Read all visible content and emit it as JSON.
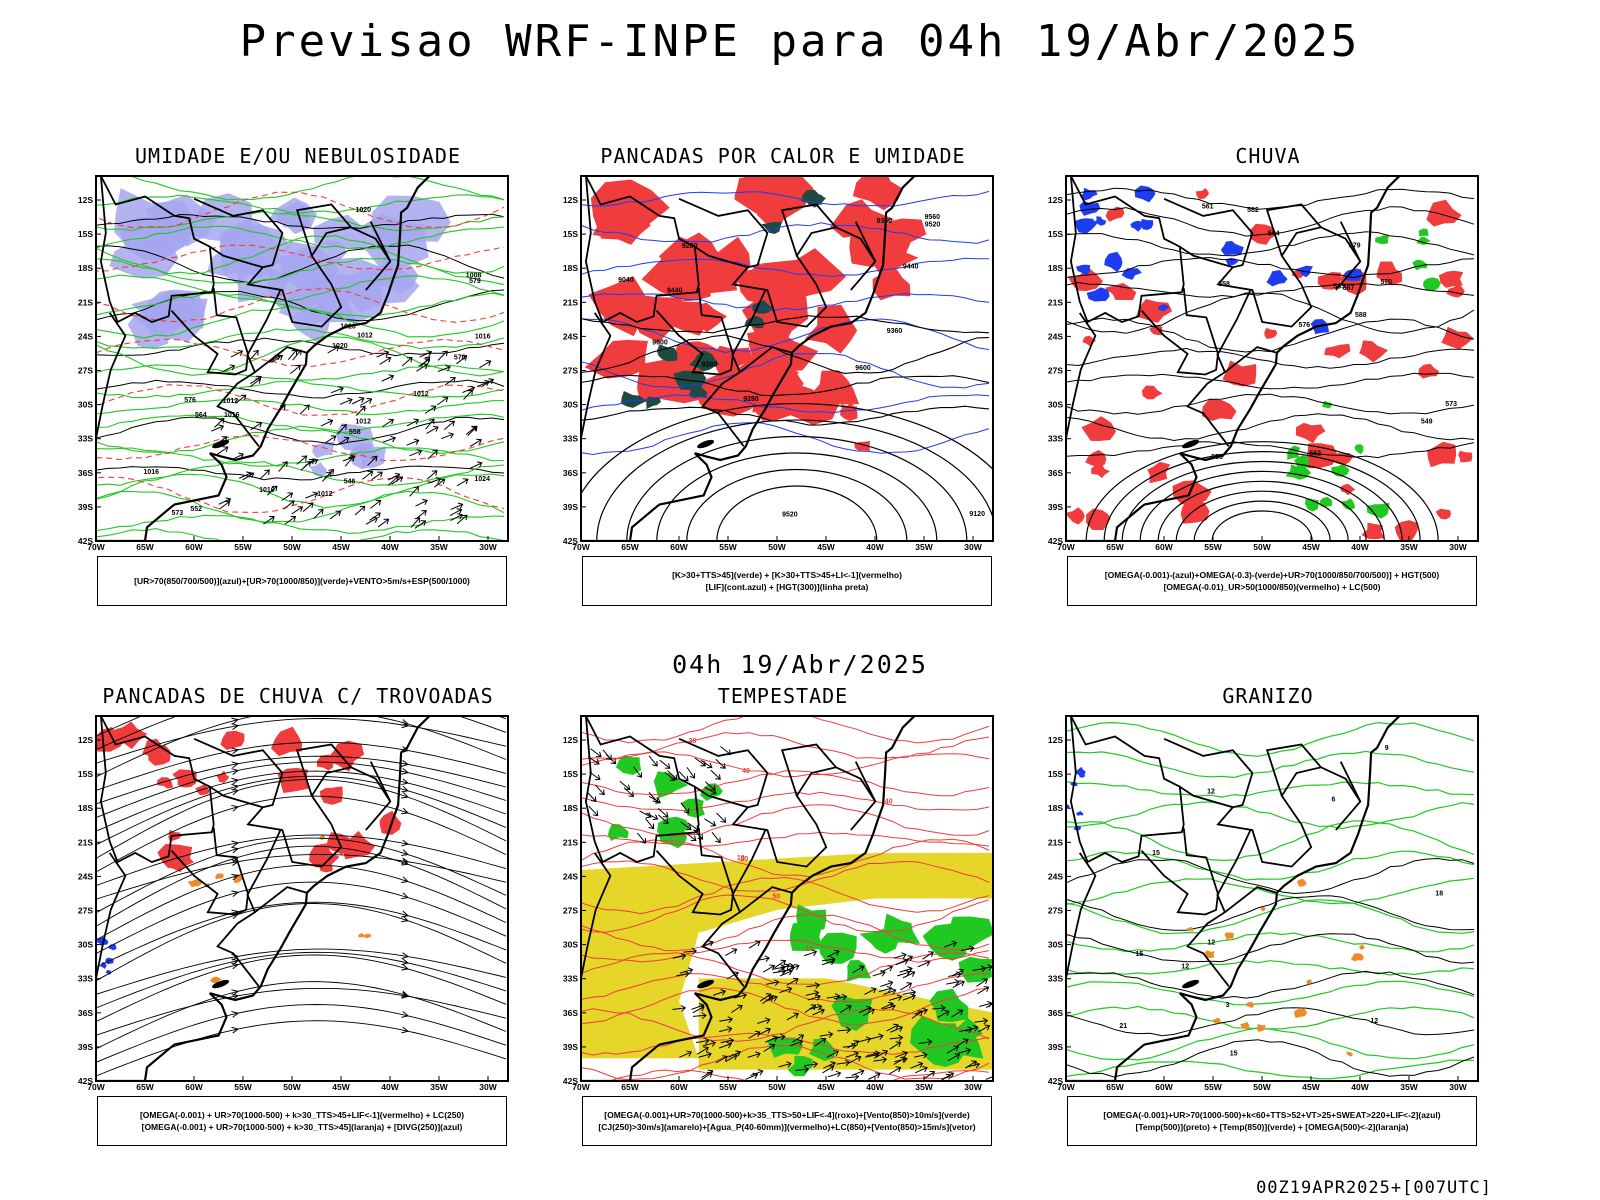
{
  "header": {
    "title": "Previsao WRF-INPE  para 04h 19/Abr/2025",
    "mid_title": "04h 19/Abr/2025",
    "run_stamp": "00Z19APR2025+[007UTC]"
  },
  "axes": {
    "lat_labels": [
      "12S",
      "15S",
      "18S",
      "21S",
      "24S",
      "27S",
      "30S",
      "33S",
      "36S",
      "39S",
      "42S"
    ],
    "lon_labels": [
      "70W",
      "65W",
      "60W",
      "55W",
      "50W",
      "45W",
      "40W",
      "35W",
      "30W"
    ]
  },
  "colors": {
    "blue_shade": "#a6a6f0",
    "red": "#f03c3c",
    "green": "#22c822",
    "dark_green": "#1e4a40",
    "yellow": "#e6d62a",
    "orange": "#f08a28",
    "blue": "#1e3cf0",
    "black": "#000000"
  },
  "panels": [
    {
      "id": "umidade",
      "title": "UMIDADE E/OU NEBULOSIDADE",
      "legend": [
        "[UR>70(850/700/500)](azul)+[UR>70(1000/850)](verde)+VENTO>5m/s+ESP(500/1000)"
      ],
      "contour_labels": [
        "1012",
        "1016",
        "1012",
        "1012",
        "1016",
        "1012",
        "1020",
        "1016",
        "1020",
        "1024",
        "1016",
        "1012",
        "1008",
        "1020",
        "576",
        "570",
        "564",
        "558",
        "552",
        "546",
        "579",
        "573"
      ]
    },
    {
      "id": "pancadas",
      "title": "PANCADAS POR CALOR E UMIDADE",
      "legend": [
        "[K>30+TTS>45](verde) + [K>30+TTS>45+LI<-1](vermelho)",
        "[LIF](cont.azul) + [HGT(300)](linha preta)"
      ],
      "contour_labels": [
        "9600",
        "9560",
        "9520",
        "9440",
        "9360",
        "9280",
        "9200",
        "9120",
        "9040",
        "9600",
        "9520",
        "9440",
        "9280",
        "9360"
      ]
    },
    {
      "id": "chuva",
      "title": "CHUVA",
      "legend": [
        "[OMEGA(-0.001)-(azul)+OMEGA(-0.3)-(verde)+UR>70(1000/850/700/500)] + HGT(500)",
        "[OMEGA(-0.01)_UR>50(1000/850)(vermelho) + LC(500)"
      ],
      "contour_labels": [
        "588",
        "585",
        "582",
        "579",
        "576",
        "573",
        "570",
        "567",
        "564",
        "561",
        "558",
        "555",
        "552",
        "549"
      ]
    },
    {
      "id": "trovoadas",
      "title": "PANCADAS DE CHUVA C/ TROVOADAS",
      "legend": [
        "[OMEGA(-0.001) + UR>70(1000-500) + k>30_TTS>45+LIF<-1](vermelho) + LC(250)",
        "[OMEGA(-0.001) + UR>70(1000-500) + k>30_TTS>45](laranja) + [DIVG(250)](azul)"
      ]
    },
    {
      "id": "tempestade",
      "title": "TEMPESTADE",
      "legend": [
        "[OMEGA(-0.001)+UR>70(1000-500)+k>35_TTS>50+LIF<-4](roxo)+[Vento(850)>10m/s](verde)",
        "[CJ(250)>30m/s](amarelo)+[Agua_P(40-60mm)](vermelho)+LC(850)+[Vento(850)>15m/s](vetor)"
      ],
      "contour_labels": [
        "40",
        "50",
        "40",
        "30",
        "20",
        "10",
        "10"
      ]
    },
    {
      "id": "granizo",
      "title": "GRANIZO",
      "legend": [
        "[OMEGA(-0.001)+UR>70(1000-500)+k<60+TTS>52+VT>25+SWEAT>220+LIF<-2](azul)",
        "[Temp(500)](preto) + [Temp(850)](verde) + [OMEGA(500)<-2](laranja)"
      ],
      "contour_labels": [
        "9",
        "12",
        "12",
        "12",
        "15",
        "15",
        "18",
        "21",
        "3",
        "6",
        "12",
        "15"
      ]
    }
  ]
}
